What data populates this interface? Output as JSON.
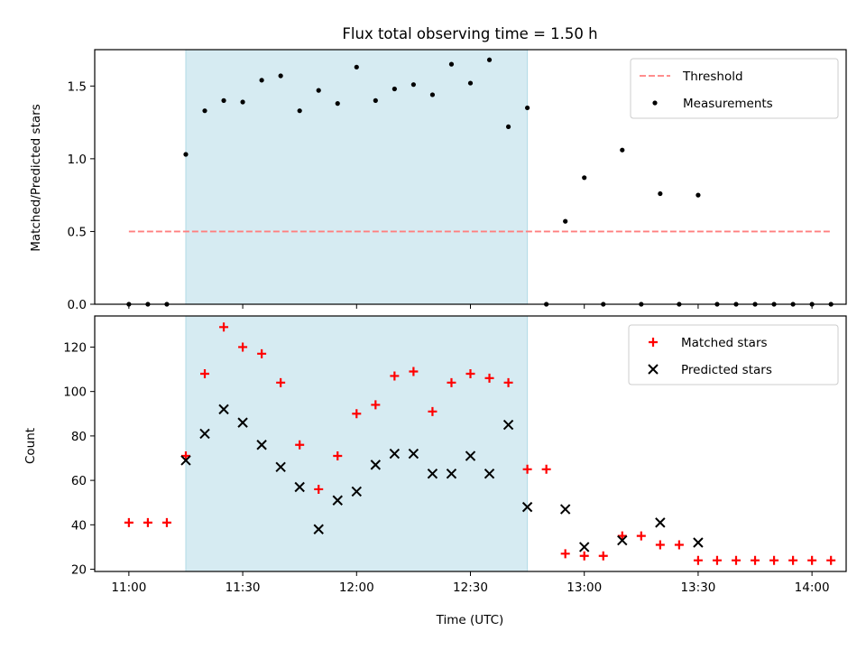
{
  "chart_data": [
    {
      "type": "scatter",
      "title": "Flux total observing time = 1.50 h",
      "xlabel": "",
      "ylabel": "Matched/Predicted stars",
      "xlim": [
        "10:51",
        "14:09"
      ],
      "ylim": [
        0,
        1.75
      ],
      "yticks": [
        0.0,
        0.5,
        1.0,
        1.5
      ],
      "ytick_labels": [
        "0.0",
        "0.5",
        "1.0",
        "1.5"
      ],
      "shaded_region": {
        "x_start": "11:15",
        "x_end": "12:45",
        "color": "#add8e6"
      },
      "legend_position": "top-right",
      "series": [
        {
          "name": "Threshold",
          "kind": "dashed-line",
          "color": "#ff7f7f",
          "x": [
            "11:00",
            "14:05"
          ],
          "y": [
            0.5,
            0.5
          ]
        },
        {
          "name": "Measurements",
          "kind": "points",
          "color": "#000000",
          "x": [
            "11:00",
            "11:05",
            "11:10",
            "11:15",
            "11:20",
            "11:25",
            "11:30",
            "11:35",
            "11:40",
            "11:45",
            "11:50",
            "11:55",
            "12:00",
            "12:05",
            "12:10",
            "12:15",
            "12:20",
            "12:25",
            "12:30",
            "12:35",
            "12:40",
            "12:45",
            "12:50",
            "12:55",
            "13:00",
            "13:05",
            "13:10",
            "13:15",
            "13:20",
            "13:25",
            "13:30",
            "13:35",
            "13:40",
            "13:45",
            "13:50",
            "13:55",
            "14:00",
            "14:05"
          ],
          "y": [
            0,
            0,
            0,
            1.03,
            1.33,
            1.4,
            1.39,
            1.54,
            1.57,
            1.33,
            1.47,
            1.38,
            1.63,
            1.4,
            1.48,
            1.51,
            1.44,
            1.65,
            1.52,
            1.68,
            1.22,
            1.35,
            0,
            0.57,
            0.87,
            0,
            1.06,
            0,
            0.76,
            0,
            0.75,
            0,
            0,
            0,
            0,
            0,
            0,
            0
          ]
        }
      ]
    },
    {
      "type": "scatter",
      "title": "",
      "xlabel": "Time (UTC)",
      "ylabel": "Count",
      "xlim": [
        "10:51",
        "14:09"
      ],
      "ylim": [
        19,
        134
      ],
      "yticks": [
        20,
        40,
        60,
        80,
        100,
        120
      ],
      "ytick_labels": [
        "20",
        "40",
        "60",
        "80",
        "100",
        "120"
      ],
      "xtick_labels": [
        "11:00",
        "11:30",
        "12:00",
        "12:30",
        "13:00",
        "13:30",
        "14:00"
      ],
      "shaded_region": {
        "x_start": "11:15",
        "x_end": "12:45",
        "color": "#add8e6"
      },
      "legend_position": "top-right",
      "series": [
        {
          "name": "Matched stars",
          "marker": "+",
          "color": "#ff0000",
          "x": [
            "11:00",
            "11:05",
            "11:10",
            "11:15",
            "11:20",
            "11:25",
            "11:30",
            "11:35",
            "11:40",
            "11:45",
            "11:50",
            "11:55",
            "12:00",
            "12:05",
            "12:10",
            "12:15",
            "12:20",
            "12:25",
            "12:30",
            "12:35",
            "12:40",
            "12:45",
            "12:50",
            "12:55",
            "13:00",
            "13:05",
            "13:10",
            "13:15",
            "13:20",
            "13:25",
            "13:30",
            "13:35",
            "13:40",
            "13:45",
            "13:50",
            "13:55",
            "14:00",
            "14:05"
          ],
          "y": [
            41,
            41,
            41,
            71,
            108,
            129,
            120,
            117,
            104,
            76,
            56,
            71,
            90,
            94,
            107,
            109,
            91,
            104,
            108,
            106,
            104,
            65,
            65,
            27,
            26,
            26,
            35,
            35,
            31,
            31,
            24,
            24,
            24,
            24,
            24,
            24,
            24,
            24
          ]
        },
        {
          "name": "Predicted stars",
          "marker": "x",
          "color": "#000000",
          "x": [
            "11:15",
            "11:20",
            "11:25",
            "11:30",
            "11:35",
            "11:40",
            "11:45",
            "11:50",
            "11:55",
            "12:00",
            "12:05",
            "12:10",
            "12:15",
            "12:20",
            "12:25",
            "12:30",
            "12:35",
            "12:40",
            "12:45",
            "12:55",
            "13:00",
            "13:10",
            "13:20",
            "13:30"
          ],
          "y": [
            69,
            81,
            92,
            86,
            76,
            66,
            57,
            38,
            51,
            55,
            67,
            72,
            72,
            63,
            63,
            71,
            63,
            85,
            48,
            47,
            30,
            33,
            41,
            32
          ]
        }
      ]
    }
  ]
}
